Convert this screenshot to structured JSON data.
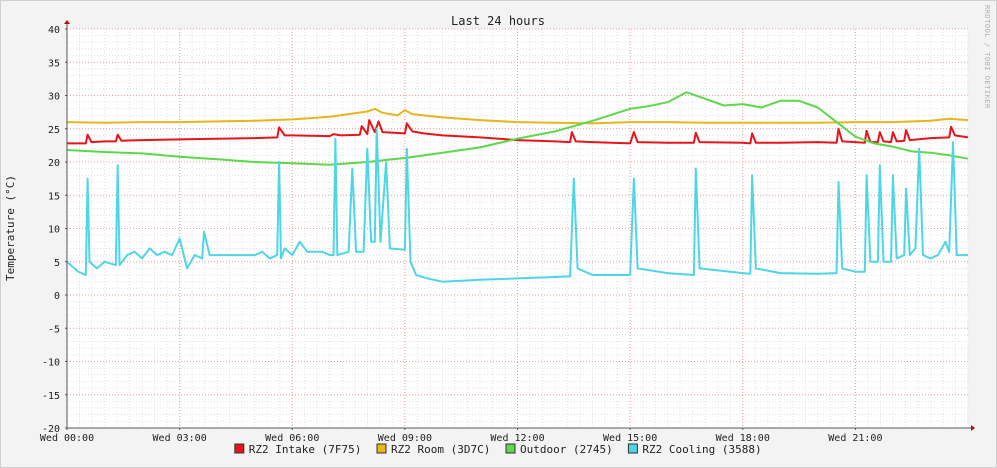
{
  "chart_data": {
    "type": "line",
    "title": "Last 24 hours",
    "ylabel": "Temperature (°C)",
    "xlabel": "",
    "watermark": "RRDTOOL / TOBI OETIKER",
    "ylim": [
      -20,
      40
    ],
    "xlim": [
      0,
      24
    ],
    "yticks": [
      40,
      35,
      30,
      25,
      20,
      15,
      10,
      5,
      0,
      -5,
      -10,
      -15,
      -20
    ],
    "x_ticks": [
      {
        "x": 0,
        "label": "Wed 00:00"
      },
      {
        "x": 3,
        "label": "Wed 03:00"
      },
      {
        "x": 6,
        "label": "Wed 06:00"
      },
      {
        "x": 9,
        "label": "Wed 09:00"
      },
      {
        "x": 12,
        "label": "Wed 12:00"
      },
      {
        "x": 15,
        "label": "Wed 15:00"
      },
      {
        "x": 18,
        "label": "Wed 18:00"
      },
      {
        "x": 21,
        "label": "Wed 21:00"
      }
    ],
    "grid": true,
    "legend_position": "bottom",
    "series": [
      {
        "name": "RZ2 Intake (7F75)",
        "color": "#e8141c",
        "points": [
          [
            0,
            22.8
          ],
          [
            0.5,
            22.8
          ],
          [
            0.55,
            24.1
          ],
          [
            0.65,
            23
          ],
          [
            1,
            23.1
          ],
          [
            1.3,
            23.1
          ],
          [
            1.35,
            24.1
          ],
          [
            1.45,
            23.2
          ],
          [
            2,
            23.3
          ],
          [
            3,
            23.4
          ],
          [
            4,
            23.5
          ],
          [
            5,
            23.6
          ],
          [
            5.6,
            23.7
          ],
          [
            5.65,
            25.2
          ],
          [
            5.8,
            24
          ],
          [
            6,
            24
          ],
          [
            7,
            23.9
          ],
          [
            7.1,
            24.2
          ],
          [
            7.3,
            24
          ],
          [
            7.8,
            24.1
          ],
          [
            7.85,
            25.4
          ],
          [
            8,
            24.2
          ],
          [
            8.05,
            26.3
          ],
          [
            8.2,
            24.5
          ],
          [
            8.3,
            26.1
          ],
          [
            8.4,
            24.5
          ],
          [
            9,
            24.3
          ],
          [
            9.05,
            25.8
          ],
          [
            9.2,
            24.6
          ],
          [
            9.5,
            24.3
          ],
          [
            10,
            24
          ],
          [
            11,
            23.7
          ],
          [
            12,
            23.3
          ],
          [
            13,
            23.1
          ],
          [
            13.4,
            23
          ],
          [
            13.45,
            24.5
          ],
          [
            13.55,
            23.1
          ],
          [
            14,
            23
          ],
          [
            14.5,
            22.9
          ],
          [
            15,
            22.8
          ],
          [
            15.1,
            24.5
          ],
          [
            15.2,
            23
          ],
          [
            16,
            22.9
          ],
          [
            16.7,
            22.9
          ],
          [
            16.75,
            24.4
          ],
          [
            16.85,
            23
          ],
          [
            18,
            22.9
          ],
          [
            18.2,
            22.8
          ],
          [
            18.25,
            24.3
          ],
          [
            18.35,
            22.9
          ],
          [
            19,
            22.9
          ],
          [
            20,
            23
          ],
          [
            20.5,
            22.9
          ],
          [
            20.55,
            25
          ],
          [
            20.65,
            23.1
          ],
          [
            21,
            23
          ],
          [
            21.25,
            22.9
          ],
          [
            21.3,
            24.7
          ],
          [
            21.4,
            23
          ],
          [
            21.6,
            23
          ],
          [
            21.65,
            24.5
          ],
          [
            21.75,
            23.1
          ],
          [
            21.95,
            23
          ],
          [
            22,
            24.5
          ],
          [
            22.1,
            23.1
          ],
          [
            22.3,
            23.2
          ],
          [
            22.35,
            24.8
          ],
          [
            22.45,
            23.3
          ],
          [
            23,
            23.6
          ],
          [
            23.5,
            23.7
          ],
          [
            23.55,
            25.3
          ],
          [
            23.65,
            24
          ],
          [
            24,
            23.7
          ]
        ]
      },
      {
        "name": "RZ2 Room (3D7C)",
        "color": "#e8b51c",
        "points": [
          [
            0,
            26
          ],
          [
            1,
            25.9
          ],
          [
            2,
            26
          ],
          [
            3,
            26
          ],
          [
            4,
            26.1
          ],
          [
            5,
            26.2
          ],
          [
            6,
            26.4
          ],
          [
            6.5,
            26.6
          ],
          [
            7,
            26.8
          ],
          [
            7.5,
            27.2
          ],
          [
            8,
            27.6
          ],
          [
            8.2,
            28
          ],
          [
            8.4,
            27.4
          ],
          [
            8.8,
            27
          ],
          [
            9,
            27.8
          ],
          [
            9.2,
            27.2
          ],
          [
            9.5,
            27
          ],
          [
            10,
            26.7
          ],
          [
            11,
            26.3
          ],
          [
            12,
            26
          ],
          [
            13,
            25.9
          ],
          [
            14,
            25.8
          ],
          [
            15,
            26
          ],
          [
            16,
            26
          ],
          [
            17,
            25.9
          ],
          [
            18,
            25.9
          ],
          [
            19,
            25.9
          ],
          [
            20,
            25.9
          ],
          [
            21,
            26
          ],
          [
            22,
            26
          ],
          [
            23,
            26.2
          ],
          [
            23.5,
            26.5
          ],
          [
            24,
            26.3
          ]
        ]
      },
      {
        "name": "Outdoor (2745)",
        "color": "#5cd84a",
        "points": [
          [
            0,
            21.8
          ],
          [
            1,
            21.5
          ],
          [
            2,
            21.3
          ],
          [
            3,
            20.8
          ],
          [
            4,
            20.4
          ],
          [
            5,
            20
          ],
          [
            6,
            19.8
          ],
          [
            7,
            19.6
          ],
          [
            8,
            20
          ],
          [
            9,
            20.6
          ],
          [
            10,
            21.4
          ],
          [
            11,
            22.2
          ],
          [
            12,
            23.5
          ],
          [
            13,
            24.6
          ],
          [
            14,
            26.2
          ],
          [
            15,
            28
          ],
          [
            15.5,
            28.4
          ],
          [
            16,
            29
          ],
          [
            16.5,
            30.5
          ],
          [
            17,
            29.5
          ],
          [
            17.5,
            28.5
          ],
          [
            18,
            28.7
          ],
          [
            18.5,
            28.2
          ],
          [
            19,
            29.2
          ],
          [
            19.5,
            29.2
          ],
          [
            20,
            28.2
          ],
          [
            20.5,
            26
          ],
          [
            21,
            23.8
          ],
          [
            21.5,
            22.8
          ],
          [
            22,
            22.3
          ],
          [
            22.5,
            21.6
          ],
          [
            23,
            21.4
          ],
          [
            23.5,
            21
          ],
          [
            24,
            20.5
          ]
        ]
      },
      {
        "name": "RZ2 Cooling (3588)",
        "color": "#4fd6e6",
        "points": [
          [
            0,
            5
          ],
          [
            0.3,
            3.5
          ],
          [
            0.5,
            3
          ],
          [
            0.55,
            17.5
          ],
          [
            0.6,
            5
          ],
          [
            0.8,
            4
          ],
          [
            1,
            5
          ],
          [
            1.3,
            4.5
          ],
          [
            1.35,
            19.5
          ],
          [
            1.4,
            4.5
          ],
          [
            1.6,
            6
          ],
          [
            1.8,
            6.5
          ],
          [
            2,
            5.5
          ],
          [
            2.2,
            7
          ],
          [
            2.4,
            6
          ],
          [
            2.6,
            6.5
          ],
          [
            2.8,
            6
          ],
          [
            3,
            8.5
          ],
          [
            3.2,
            4
          ],
          [
            3.4,
            6
          ],
          [
            3.6,
            5.5
          ],
          [
            3.65,
            9.5
          ],
          [
            3.8,
            6
          ],
          [
            4,
            6
          ],
          [
            5,
            6
          ],
          [
            5.2,
            6.5
          ],
          [
            5.4,
            5.5
          ],
          [
            5.6,
            6
          ],
          [
            5.65,
            20
          ],
          [
            5.7,
            5.5
          ],
          [
            5.8,
            7
          ],
          [
            6,
            6
          ],
          [
            6.2,
            8
          ],
          [
            6.4,
            6.5
          ],
          [
            6.8,
            6.5
          ],
          [
            7,
            6
          ],
          [
            7.1,
            6
          ],
          [
            7.15,
            23.5
          ],
          [
            7.2,
            6
          ],
          [
            7.5,
            6.5
          ],
          [
            7.6,
            19
          ],
          [
            7.7,
            6.5
          ],
          [
            7.9,
            6.5
          ],
          [
            8.0,
            22
          ],
          [
            8.1,
            8
          ],
          [
            8.2,
            8
          ],
          [
            8.25,
            25
          ],
          [
            8.35,
            8
          ],
          [
            8.5,
            20
          ],
          [
            8.6,
            7
          ],
          [
            9,
            6.8
          ],
          [
            9.05,
            22
          ],
          [
            9.15,
            5
          ],
          [
            9.3,
            3
          ],
          [
            9.6,
            2.5
          ],
          [
            10,
            2
          ],
          [
            11,
            2.3
          ],
          [
            12,
            2.5
          ],
          [
            13,
            2.7
          ],
          [
            13.4,
            2.8
          ],
          [
            13.5,
            17.5
          ],
          [
            13.6,
            4
          ],
          [
            14,
            3
          ],
          [
            15,
            3
          ],
          [
            15.1,
            17.5
          ],
          [
            15.2,
            4
          ],
          [
            16,
            3.3
          ],
          [
            16.7,
            3
          ],
          [
            16.75,
            19
          ],
          [
            16.85,
            4
          ],
          [
            18,
            3.3
          ],
          [
            18.2,
            3.2
          ],
          [
            18.25,
            18
          ],
          [
            18.35,
            4
          ],
          [
            19,
            3.3
          ],
          [
            20,
            3.2
          ],
          [
            20.5,
            3.3
          ],
          [
            20.55,
            17
          ],
          [
            20.65,
            4
          ],
          [
            21,
            3.5
          ],
          [
            21.25,
            3.5
          ],
          [
            21.3,
            18
          ],
          [
            21.4,
            5
          ],
          [
            21.6,
            5
          ],
          [
            21.65,
            19.5
          ],
          [
            21.75,
            5
          ],
          [
            21.95,
            5
          ],
          [
            22,
            18
          ],
          [
            22.1,
            5.5
          ],
          [
            22.3,
            6
          ],
          [
            22.35,
            16
          ],
          [
            22.45,
            6
          ],
          [
            22.6,
            7
          ],
          [
            22.7,
            22
          ],
          [
            22.8,
            6
          ],
          [
            23,
            5.5
          ],
          [
            23.2,
            6
          ],
          [
            23.4,
            8
          ],
          [
            23.5,
            6.5
          ],
          [
            23.6,
            23
          ],
          [
            23.7,
            6
          ],
          [
            24,
            6
          ]
        ]
      }
    ]
  }
}
